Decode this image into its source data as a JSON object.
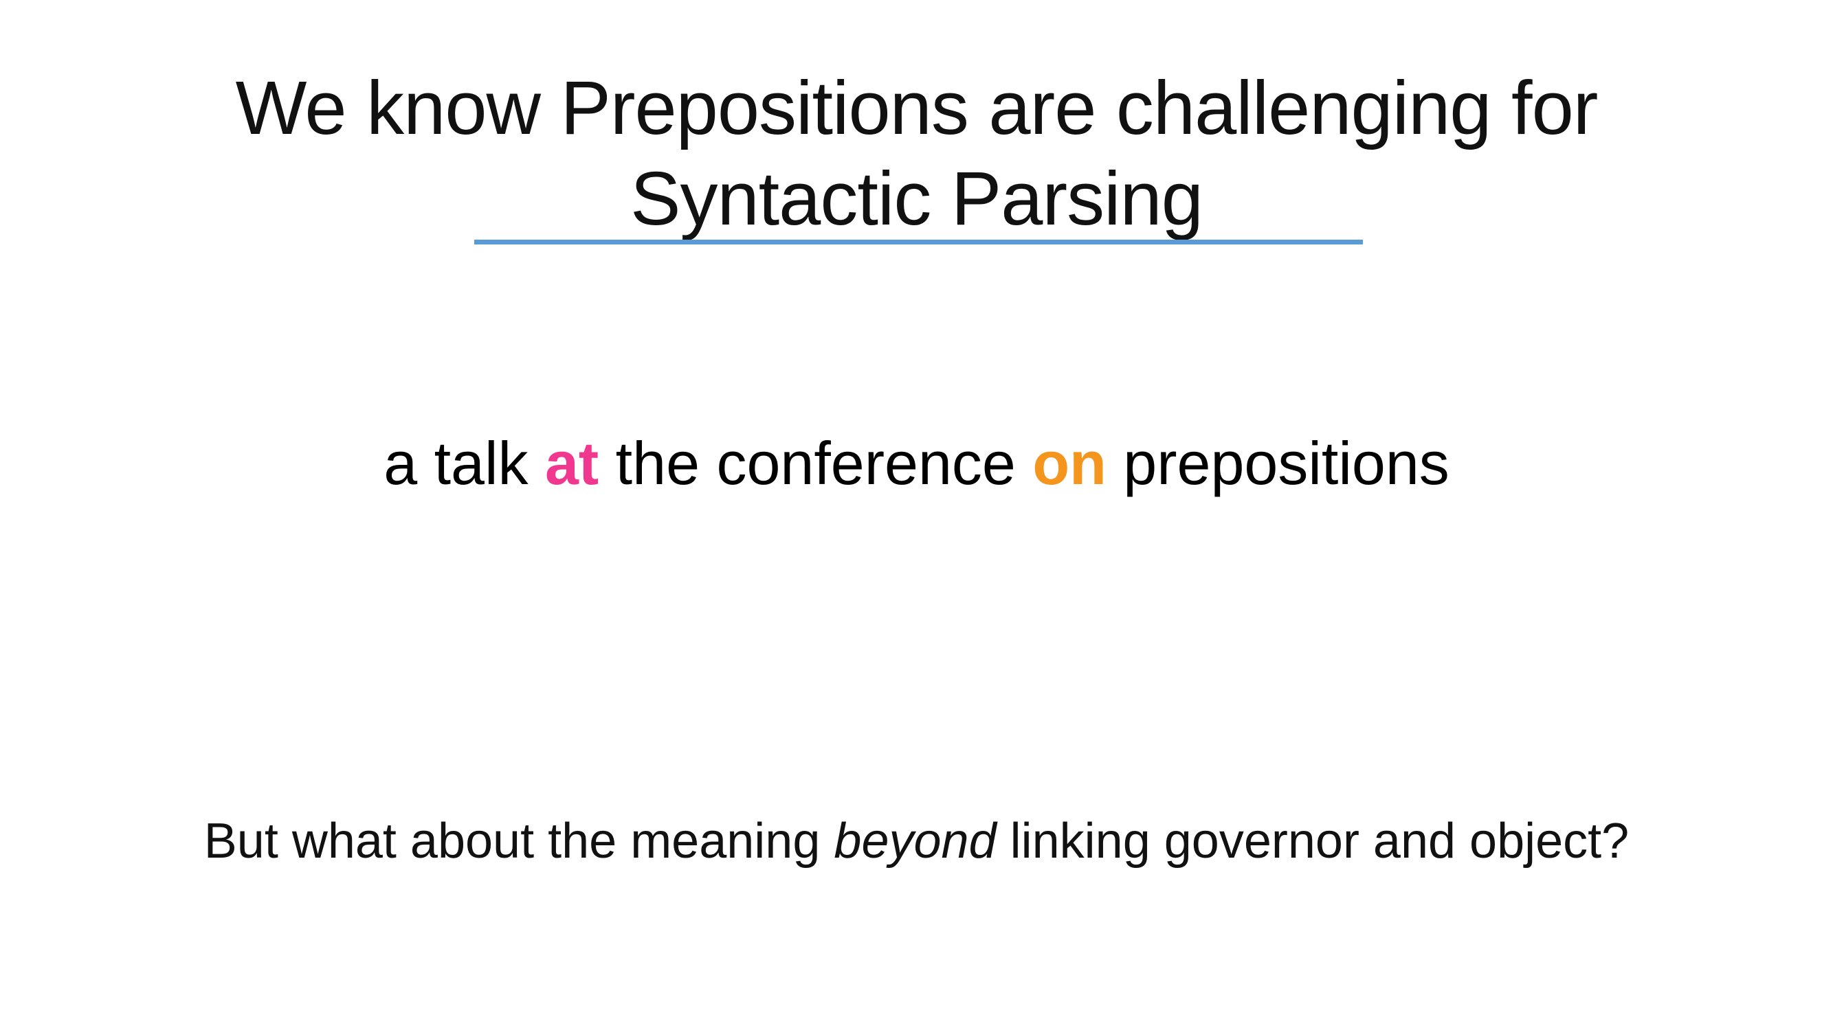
{
  "title": {
    "line1": "We know Prepositions are challenging for",
    "line2": "Syntactic Parsing"
  },
  "example": {
    "part1": "a talk ",
    "prep1": "at",
    "part2": " the conference ",
    "prep2": "on",
    "part3": " prepositions"
  },
  "question": {
    "part1": "But what about the meaning ",
    "emphasis": "beyond",
    "part2": " linking governor and object?"
  },
  "colors": {
    "prep1": "#f0388f",
    "prep2": "#f4951d",
    "rule": "#5b9bd5"
  }
}
